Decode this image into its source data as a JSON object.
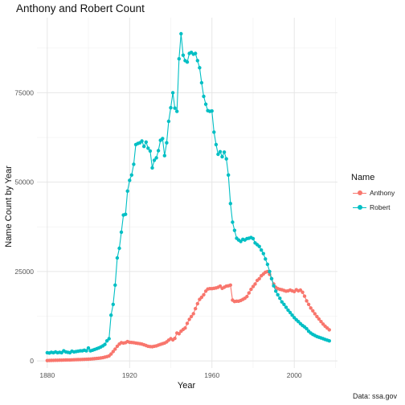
{
  "chart_data": {
    "type": "line",
    "title": "Anthony and Robert Count",
    "xlabel": "Year",
    "ylabel": "Name Count by Year",
    "caption": "Data: ssa.gov",
    "xlim": [
      1875,
      2021
    ],
    "ylim": [
      -2000,
      96000
    ],
    "x_ticks": [
      1880,
      1920,
      1960,
      2000
    ],
    "y_ticks": [
      0,
      25000,
      50000,
      75000
    ],
    "y_tick_labels": [
      "0",
      "25000",
      "50000",
      "75000"
    ],
    "grid": true,
    "legend": {
      "title": "Name",
      "placement": "right"
    },
    "series": [
      {
        "name": "Anthony",
        "color": "#F8766D",
        "x": [
          1880,
          1881,
          1882,
          1883,
          1884,
          1885,
          1886,
          1887,
          1888,
          1889,
          1890,
          1891,
          1892,
          1893,
          1894,
          1895,
          1896,
          1897,
          1898,
          1899,
          1900,
          1901,
          1902,
          1903,
          1904,
          1905,
          1906,
          1907,
          1908,
          1909,
          1910,
          1911,
          1912,
          1913,
          1914,
          1915,
          1916,
          1917,
          1918,
          1919,
          1920,
          1921,
          1922,
          1923,
          1924,
          1925,
          1926,
          1927,
          1928,
          1929,
          1930,
          1931,
          1932,
          1933,
          1934,
          1935,
          1936,
          1937,
          1938,
          1939,
          1940,
          1941,
          1942,
          1943,
          1944,
          1945,
          1946,
          1947,
          1948,
          1949,
          1950,
          1951,
          1952,
          1953,
          1954,
          1955,
          1956,
          1957,
          1958,
          1959,
          1960,
          1961,
          1962,
          1963,
          1964,
          1965,
          1966,
          1967,
          1968,
          1969,
          1970,
          1971,
          1972,
          1973,
          1974,
          1975,
          1976,
          1977,
          1978,
          1979,
          1980,
          1981,
          1982,
          1983,
          1984,
          1985,
          1986,
          1987,
          1988,
          1989,
          1990,
          1991,
          1992,
          1993,
          1994,
          1995,
          1996,
          1997,
          1998,
          1999,
          2000,
          2001,
          2002,
          2003,
          2004,
          2005,
          2006,
          2007,
          2008,
          2009,
          2010,
          2011,
          2012,
          2013,
          2014,
          2015,
          2016,
          2017
        ],
        "values": [
          100,
          120,
          140,
          150,
          170,
          180,
          200,
          210,
          230,
          250,
          260,
          280,
          300,
          320,
          340,
          350,
          380,
          400,
          430,
          450,
          470,
          520,
          560,
          620,
          680,
          750,
          820,
          900,
          1050,
          1200,
          1400,
          1900,
          2600,
          3300,
          4100,
          4700,
          5100,
          5000,
          5100,
          5400,
          5200,
          5150,
          5100,
          5000,
          4900,
          4800,
          4700,
          4500,
          4300,
          4100,
          4000,
          3950,
          4100,
          4200,
          4400,
          4600,
          4800,
          5000,
          5300,
          5800,
          6200,
          5900,
          6300,
          7800,
          7600,
          8300,
          8800,
          9200,
          10500,
          11600,
          12400,
          13200,
          14600,
          16000,
          17200,
          17800,
          18500,
          19500,
          20100,
          20200,
          20200,
          20300,
          20400,
          20600,
          20900,
          20300,
          20600,
          20900,
          21000,
          21200,
          17000,
          16600,
          16700,
          16700,
          16900,
          17200,
          17500,
          18000,
          19000,
          20000,
          20800,
          21500,
          22500,
          23000,
          23800,
          24300,
          24800,
          25000,
          24200,
          23000,
          21500,
          20600,
          20200,
          20000,
          19900,
          19700,
          19500,
          19600,
          19800,
          19600,
          19400,
          19900,
          19600,
          19800,
          19200,
          18100,
          16800,
          15800,
          14800,
          14000,
          13200,
          12400,
          11700,
          11000,
          10300,
          9700,
          9200,
          8700
        ]
      },
      {
        "name": "Robert",
        "color": "#00BFC4",
        "x": [
          1880,
          1881,
          1882,
          1883,
          1884,
          1885,
          1886,
          1887,
          1888,
          1889,
          1890,
          1891,
          1892,
          1893,
          1894,
          1895,
          1896,
          1897,
          1898,
          1899,
          1900,
          1901,
          1902,
          1903,
          1904,
          1905,
          1906,
          1907,
          1908,
          1909,
          1910,
          1911,
          1912,
          1913,
          1914,
          1915,
          1916,
          1917,
          1918,
          1919,
          1920,
          1921,
          1922,
          1923,
          1924,
          1925,
          1926,
          1927,
          1928,
          1929,
          1930,
          1931,
          1932,
          1933,
          1934,
          1935,
          1936,
          1937,
          1938,
          1939,
          1940,
          1941,
          1942,
          1943,
          1944,
          1945,
          1946,
          1947,
          1948,
          1949,
          1950,
          1951,
          1952,
          1953,
          1954,
          1955,
          1956,
          1957,
          1958,
          1959,
          1960,
          1961,
          1962,
          1963,
          1964,
          1965,
          1966,
          1967,
          1968,
          1969,
          1970,
          1971,
          1972,
          1973,
          1974,
          1975,
          1976,
          1977,
          1978,
          1979,
          1980,
          1981,
          1982,
          1983,
          1984,
          1985,
          1986,
          1987,
          1988,
          1989,
          1990,
          1991,
          1992,
          1993,
          1994,
          1995,
          1996,
          1997,
          1998,
          1999,
          2000,
          2001,
          2002,
          2003,
          2004,
          2005,
          2006,
          2007,
          2008,
          2009,
          2010,
          2011,
          2012,
          2013,
          2014,
          2015,
          2016,
          2017
        ],
        "values": [
          2300,
          2200,
          2400,
          2300,
          2500,
          2300,
          2400,
          2300,
          2800,
          2500,
          2400,
          2300,
          2700,
          2500,
          2600,
          2700,
          2800,
          2800,
          3000,
          2800,
          3600,
          2800,
          3000,
          3200,
          3400,
          3600,
          3900,
          4200,
          4600,
          5600,
          6200,
          12800,
          15800,
          21200,
          28800,
          31500,
          36000,
          40800,
          41000,
          47500,
          50500,
          52000,
          55000,
          60500,
          60800,
          61000,
          61500,
          60000,
          61200,
          59500,
          58700,
          54000,
          56100,
          56800,
          58800,
          61700,
          62200,
          57400,
          61000,
          67000,
          70800,
          75000,
          70700,
          69800,
          84500,
          91500,
          85500,
          84000,
          83600,
          86000,
          86300,
          85800,
          86000,
          84000,
          82000,
          77800,
          74000,
          71800,
          70000,
          69800,
          69900,
          64000,
          60500,
          57800,
          58500,
          57100,
          58400,
          56500,
          52000,
          44000,
          38800,
          36500,
          34300,
          33800,
          33400,
          34000,
          33800,
          34200,
          34300,
          34500,
          34200,
          33000,
          32500,
          32000,
          31000,
          30000,
          28500,
          27000,
          25000,
          23000,
          21000,
          19500,
          18500,
          17500,
          16500,
          15800,
          15000,
          14200,
          13500,
          12800,
          12100,
          11500,
          11000,
          10400,
          9900,
          9500,
          9000,
          8300,
          7800,
          7400,
          7100,
          6800,
          6600,
          6400,
          6200,
          6000,
          5800,
          5600
        ]
      }
    ]
  }
}
